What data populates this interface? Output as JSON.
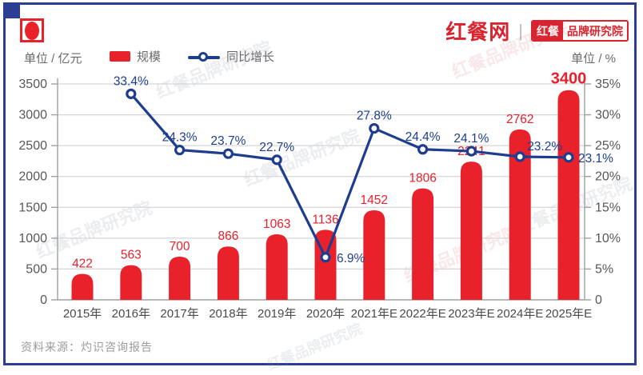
{
  "header": {
    "brand": "红餐网",
    "separator": "|",
    "badge_left": "红餐",
    "badge_right": "品牌研究院"
  },
  "legend": {
    "unit_left": "单位 / 亿元",
    "unit_right": "单位 / %",
    "series_bar_label": "规模",
    "series_line_label": "同比增长"
  },
  "source": "资料来源：灼识咨询报告",
  "watermark": "红餐品牌研究院",
  "colors": {
    "bar": "#e8212b",
    "bar_label": "#e8212b",
    "line": "#1e3d8f",
    "line_label": "#1e3d8f",
    "grid": "#d6d6d6",
    "axis": "#a0a0a0",
    "tick_text": "#595757",
    "x_label_text": "#4a4a4a",
    "frame": "#2c3e94",
    "brand_red": "#d9232e"
  },
  "chart_data": {
    "type": "bar",
    "subtype": "bar+line combo",
    "categories": [
      "2015年",
      "2016年",
      "2017年",
      "2018年",
      "2019年",
      "2020年",
      "2021年E",
      "2022年E",
      "2023年E",
      "2024年E",
      "2025年E"
    ],
    "series": [
      {
        "name": "规模",
        "type": "bar",
        "unit": "亿元",
        "axis": "left",
        "values": [
          422,
          563,
          700,
          866,
          1063,
          1136,
          1452,
          1806,
          2241,
          2762,
          3400
        ]
      },
      {
        "name": "同比增长",
        "type": "line",
        "unit": "%",
        "axis": "right",
        "values": [
          null,
          33.4,
          24.3,
          23.7,
          22.7,
          6.9,
          27.8,
          24.4,
          24.1,
          23.2,
          23.1
        ]
      }
    ],
    "left_axis": {
      "label": "单位 / 亿元",
      "min": 0,
      "max": 3500,
      "step": 500
    },
    "right_axis": {
      "label": "单位 / %",
      "min": 0,
      "max": 35,
      "step": 5,
      "suffix": "%",
      "zero_label": "0"
    },
    "grid": true,
    "legend_position": "top"
  }
}
